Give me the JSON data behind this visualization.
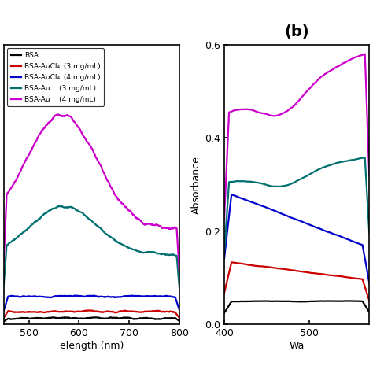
{
  "title_b": "(b)",
  "ylabel": "Absorbance",
  "xlabel_left": "elength (nm)",
  "xlabel_right": "Wa",
  "colors": {
    "BSA": "#000000",
    "BSA_AuCl4_3": "#cc0000",
    "BSA_AuCl4_4": "#0000cc",
    "BSA_Au_3": "#007070",
    "BSA_Au_4": "#cc00cc"
  },
  "legend_labels": [
    "BSA",
    "BSA-AuCl₄⁻(3 mg/mL)",
    "BSA-AuCl₄⁻(4 mg/mL)",
    "BSA-Au    (3 mg/mL)",
    "BSA-Au    (4 mg/mL)"
  ],
  "left_xlim": [
    450,
    800
  ],
  "right_xlim": [
    400,
    570
  ],
  "ylim_left": [
    0.0,
    0.22
  ],
  "ylim_right": [
    0.0,
    0.6
  ],
  "left_xticks": [
    500,
    600,
    700,
    800
  ],
  "right_xticks": [
    400,
    500
  ],
  "right_yticks": [
    0.0,
    0.2,
    0.4,
    0.6
  ]
}
